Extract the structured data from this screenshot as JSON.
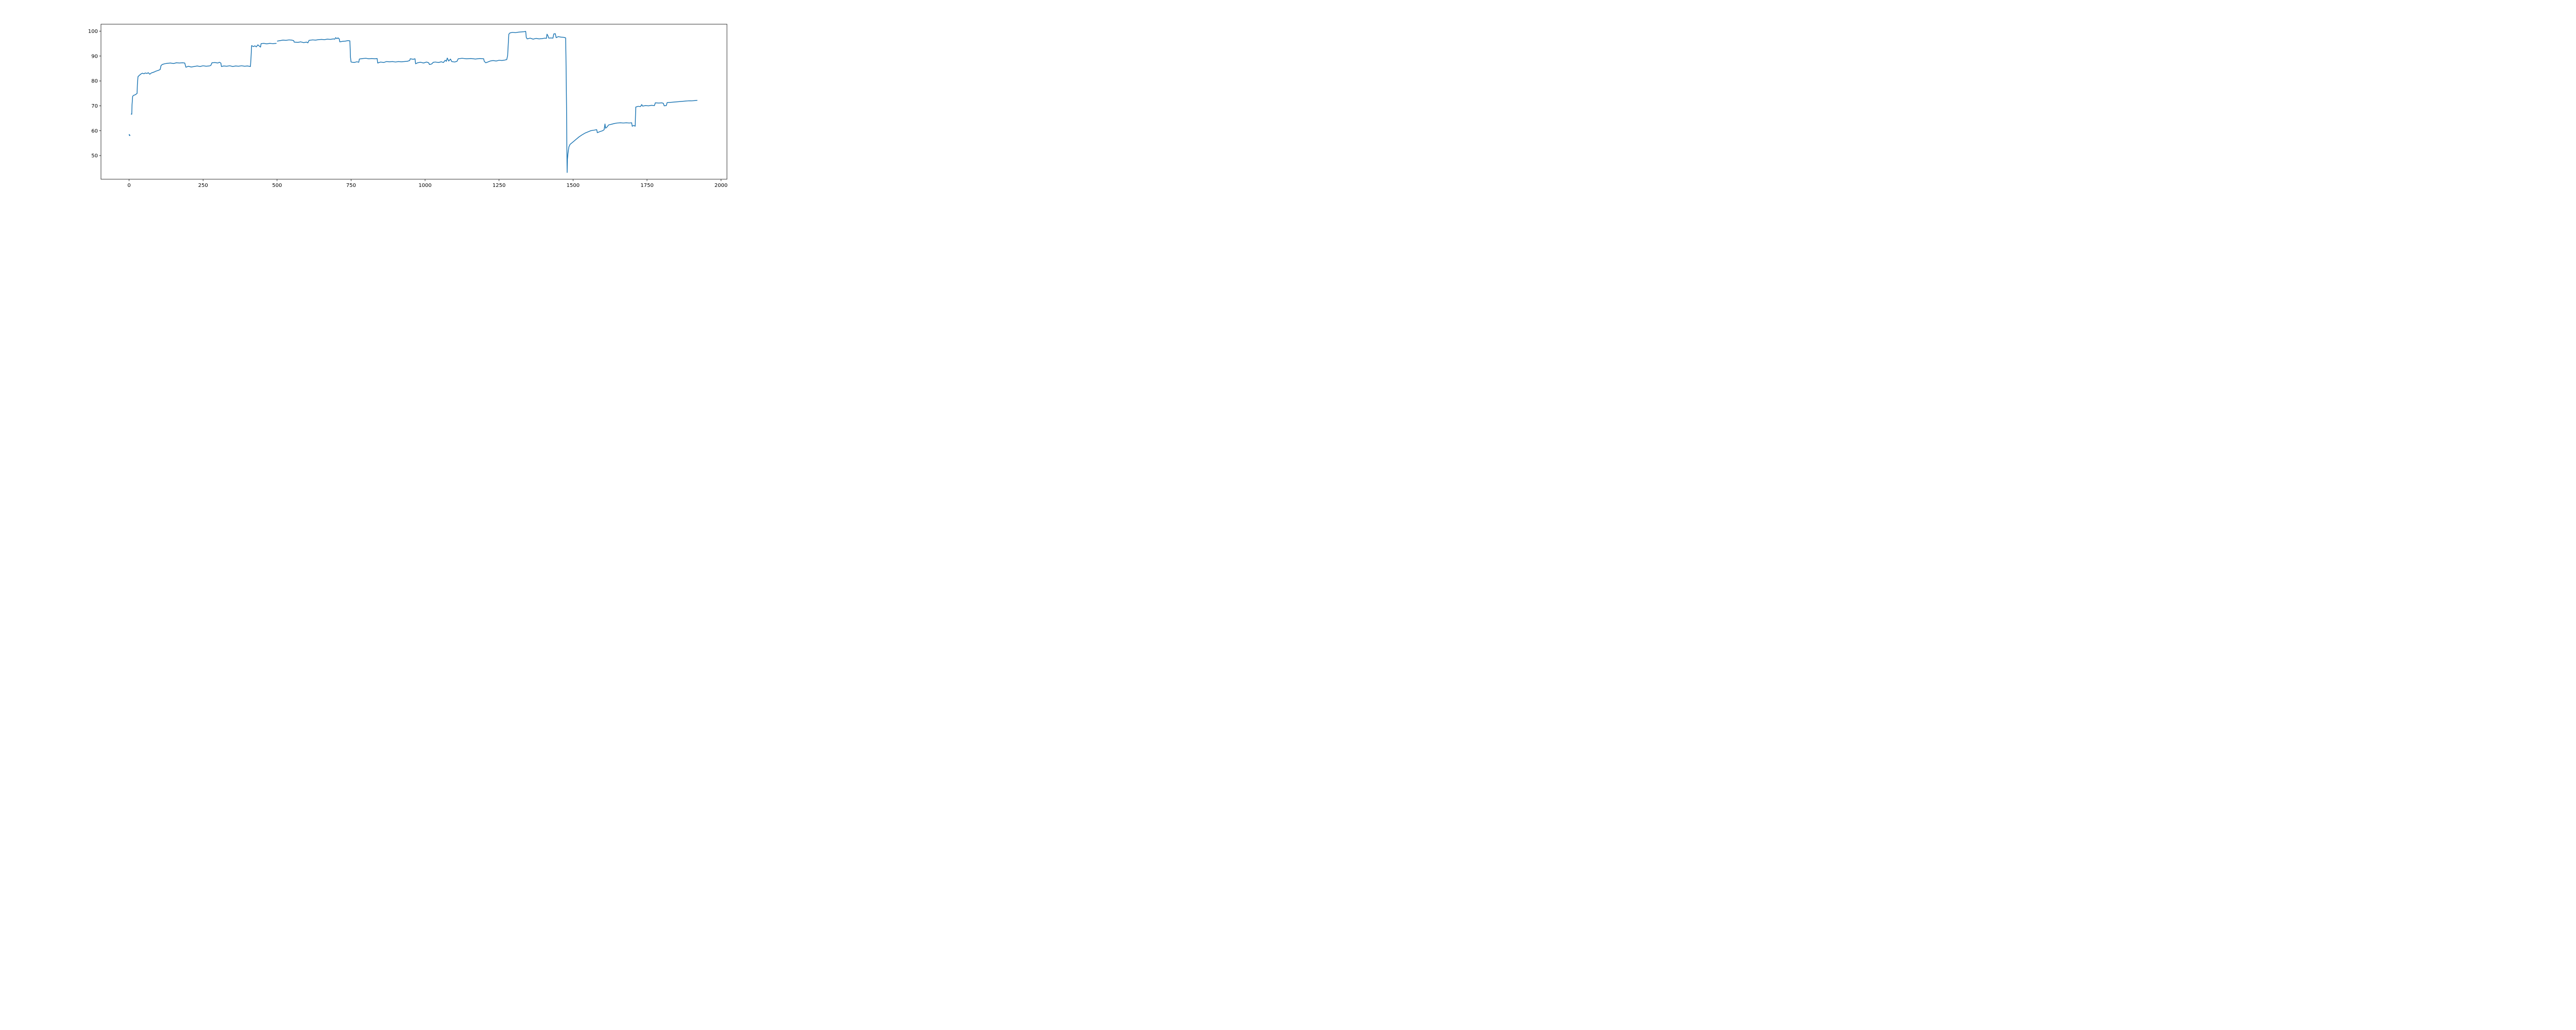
{
  "chart_data": {
    "type": "line",
    "title": "",
    "xlabel": "",
    "ylabel": "",
    "xlim": [
      -95,
      2020
    ],
    "ylim": [
      40.5,
      102.8
    ],
    "xticks": [
      0,
      250,
      500,
      750,
      1000,
      1250,
      1500,
      1750,
      2000
    ],
    "yticks": [
      50,
      60,
      70,
      80,
      90,
      100
    ],
    "grid": false,
    "series": [
      {
        "color": "#1f77b4",
        "segments": [
          [
            [
              0,
              58.6
            ],
            [
              1,
              58.1
            ],
            [
              2,
              58.3
            ],
            [
              3,
              57.9
            ]
          ],
          [
            [
              7,
              66.5
            ],
            [
              8,
              66.8
            ],
            [
              9,
              66.6
            ],
            [
              10,
              70.5
            ],
            [
              12,
              73.8
            ],
            [
              15,
              74.2
            ],
            [
              20,
              74.4
            ],
            [
              25,
              74.8
            ],
            [
              27,
              75.0
            ],
            [
              28,
              78.5
            ],
            [
              30,
              81.7
            ],
            [
              35,
              82.3
            ],
            [
              40,
              82.8
            ],
            [
              45,
              83.1
            ],
            [
              50,
              82.9
            ],
            [
              55,
              83.2
            ],
            [
              60,
              83.0
            ],
            [
              65,
              83.3
            ],
            [
              70,
              82.7
            ],
            [
              75,
              83.2
            ],
            [
              80,
              83.4
            ],
            [
              85,
              83.6
            ],
            [
              90,
              83.9
            ],
            [
              95,
              84.1
            ],
            [
              100,
              84.3
            ],
            [
              105,
              84.6
            ],
            [
              108,
              86.2
            ],
            [
              112,
              86.6
            ],
            [
              120,
              86.9
            ],
            [
              130,
              87.1
            ],
            [
              140,
              87.2
            ],
            [
              150,
              87.0
            ],
            [
              160,
              87.3
            ],
            [
              170,
              87.2
            ],
            [
              180,
              87.3
            ],
            [
              188,
              87.2
            ],
            [
              192,
              85.5
            ],
            [
              200,
              85.9
            ],
            [
              210,
              85.6
            ],
            [
              220,
              85.8
            ],
            [
              230,
              86.0
            ],
            [
              240,
              85.8
            ],
            [
              250,
              86.1
            ],
            [
              260,
              85.9
            ],
            [
              270,
              86.0
            ],
            [
              276,
              86.2
            ],
            [
              280,
              87.3
            ],
            [
              290,
              87.4
            ],
            [
              300,
              87.2
            ],
            [
              305,
              87.5
            ],
            [
              310,
              87.2
            ],
            [
              312,
              85.8
            ],
            [
              320,
              86.0
            ],
            [
              330,
              85.9
            ],
            [
              340,
              86.1
            ],
            [
              350,
              85.8
            ],
            [
              360,
              86.0
            ],
            [
              370,
              85.9
            ],
            [
              380,
              86.1
            ],
            [
              390,
              85.9
            ],
            [
              400,
              86.0
            ],
            [
              410,
              85.8
            ],
            [
              412,
              89.5
            ],
            [
              414,
              94.2
            ],
            [
              420,
              93.8
            ],
            [
              425,
              94.1
            ],
            [
              430,
              93.7
            ],
            [
              435,
              94.5
            ],
            [
              440,
              94.0
            ],
            [
              444,
              93.6
            ],
            [
              446,
              95.0
            ],
            [
              455,
              95.1
            ],
            [
              465,
              94.9
            ],
            [
              475,
              95.1
            ],
            [
              485,
              95.0
            ],
            [
              498,
              95.1
            ]
          ],
          [
            [
              500,
              96.0
            ],
            [
              510,
              96.2
            ],
            [
              520,
              96.4
            ],
            [
              530,
              96.3
            ],
            [
              540,
              96.5
            ],
            [
              550,
              96.4
            ],
            [
              556,
              96.2
            ],
            [
              558,
              95.6
            ],
            [
              570,
              95.5
            ],
            [
              580,
              95.7
            ],
            [
              590,
              95.4
            ],
            [
              600,
              95.6
            ],
            [
              604,
              95.3
            ],
            [
              608,
              96.3
            ],
            [
              620,
              96.5
            ],
            [
              630,
              96.4
            ],
            [
              640,
              96.6
            ],
            [
              650,
              96.7
            ],
            [
              660,
              96.6
            ],
            [
              670,
              96.8
            ],
            [
              680,
              96.7
            ],
            [
              690,
              96.9
            ],
            [
              695,
              96.8
            ],
            [
              698,
              97.4
            ],
            [
              702,
              97.0
            ],
            [
              706,
              97.3
            ],
            [
              710,
              96.9
            ],
            [
              712,
              95.7
            ],
            [
              720,
              95.9
            ],
            [
              730,
              96.0
            ],
            [
              740,
              96.2
            ],
            [
              746,
              96.1
            ],
            [
              748,
              89.5
            ],
            [
              750,
              87.6
            ],
            [
              760,
              87.4
            ],
            [
              770,
              87.7
            ],
            [
              776,
              87.5
            ],
            [
              778,
              88.8
            ],
            [
              790,
              89.0
            ],
            [
              800,
              89.1
            ],
            [
              810,
              88.9
            ],
            [
              820,
              89.0
            ],
            [
              830,
              88.9
            ],
            [
              838,
              89.0
            ],
            [
              840,
              87.2
            ],
            [
              850,
              87.6
            ],
            [
              860,
              87.4
            ],
            [
              870,
              87.8
            ],
            [
              880,
              87.7
            ],
            [
              890,
              87.8
            ],
            [
              900,
              87.6
            ],
            [
              910,
              87.8
            ],
            [
              920,
              87.7
            ],
            [
              930,
              87.8
            ],
            [
              940,
              87.9
            ],
            [
              948,
              88.2
            ],
            [
              950,
              88.9
            ],
            [
              960,
              88.7
            ],
            [
              966,
              88.9
            ],
            [
              968,
              86.9
            ],
            [
              975,
              87.3
            ],
            [
              985,
              87.5
            ],
            [
              995,
              87.2
            ],
            [
              1005,
              87.6
            ],
            [
              1012,
              87.3
            ],
            [
              1015,
              86.6
            ],
            [
              1022,
              86.8
            ],
            [
              1028,
              87.5
            ],
            [
              1035,
              87.6
            ],
            [
              1045,
              87.4
            ],
            [
              1055,
              87.7
            ],
            [
              1062,
              87.4
            ],
            [
              1068,
              88.3
            ],
            [
              1072,
              87.9
            ],
            [
              1075,
              89.2
            ],
            [
              1080,
              88.0
            ],
            [
              1086,
              88.8
            ],
            [
              1090,
              87.8
            ],
            [
              1100,
              87.6
            ],
            [
              1108,
              87.9
            ],
            [
              1112,
              88.9
            ],
            [
              1125,
              89.1
            ],
            [
              1140,
              88.9
            ],
            [
              1155,
              89.0
            ],
            [
              1170,
              88.8
            ],
            [
              1185,
              89.0
            ],
            [
              1198,
              88.9
            ],
            [
              1200,
              87.9
            ],
            [
              1205,
              87.3
            ],
            [
              1212,
              87.6
            ],
            [
              1220,
              88.0
            ],
            [
              1230,
              88.2
            ],
            [
              1240,
              88.0
            ],
            [
              1250,
              88.3
            ],
            [
              1260,
              88.2
            ],
            [
              1270,
              88.4
            ],
            [
              1276,
              88.6
            ],
            [
              1279,
              90.2
            ],
            [
              1281,
              94.5
            ],
            [
              1283,
              98.8
            ],
            [
              1287,
              99.3
            ],
            [
              1295,
              99.5
            ],
            [
              1305,
              99.4
            ],
            [
              1315,
              99.6
            ],
            [
              1325,
              99.7
            ],
            [
              1335,
              99.8
            ],
            [
              1340,
              99.9
            ],
            [
              1342,
              97.5
            ],
            [
              1345,
              96.9
            ],
            [
              1355,
              97.2
            ],
            [
              1365,
              96.8
            ],
            [
              1375,
              97.1
            ],
            [
              1385,
              96.9
            ],
            [
              1395,
              97.0
            ],
            [
              1405,
              97.2
            ],
            [
              1410,
              97.1
            ],
            [
              1412,
              98.8
            ],
            [
              1415,
              98.2
            ],
            [
              1418,
              97.2
            ],
            [
              1425,
              97.3
            ],
            [
              1432,
              97.2
            ],
            [
              1435,
              98.9
            ],
            [
              1440,
              99.0
            ],
            [
              1443,
              97.4
            ],
            [
              1450,
              97.8
            ],
            [
              1460,
              97.6
            ],
            [
              1470,
              97.5
            ],
            [
              1475,
              97.3
            ],
            [
              1476,
              90.0
            ],
            [
              1478,
              70.0
            ],
            [
              1479,
              55.0
            ],
            [
              1480,
              43.2
            ],
            [
              1481,
              48.5
            ],
            [
              1483,
              51.0
            ],
            [
              1486,
              53.5
            ],
            [
              1490,
              54.5
            ],
            [
              1500,
              55.5
            ],
            [
              1510,
              56.5
            ],
            [
              1520,
              57.5
            ],
            [
              1530,
              58.3
            ],
            [
              1540,
              59.0
            ],
            [
              1550,
              59.5
            ],
            [
              1560,
              60.0
            ],
            [
              1570,
              60.2
            ],
            [
              1580,
              60.4
            ],
            [
              1582,
              59.2
            ],
            [
              1590,
              59.6
            ],
            [
              1600,
              60.0
            ],
            [
              1605,
              60.4
            ],
            [
              1608,
              62.7
            ],
            [
              1610,
              61.0
            ],
            [
              1615,
              61.5
            ],
            [
              1620,
              62.3
            ],
            [
              1630,
              62.6
            ],
            [
              1640,
              62.9
            ],
            [
              1650,
              63.1
            ],
            [
              1660,
              63.2
            ],
            [
              1670,
              63.1
            ],
            [
              1680,
              63.2
            ],
            [
              1690,
              63.1
            ],
            [
              1698,
              63.2
            ],
            [
              1700,
              61.8
            ],
            [
              1705,
              62.1
            ],
            [
              1710,
              61.8
            ],
            [
              1712,
              69.5
            ],
            [
              1720,
              69.8
            ],
            [
              1728,
              69.7
            ],
            [
              1732,
              70.5
            ],
            [
              1735,
              69.9
            ],
            [
              1745,
              70.1
            ],
            [
              1755,
              70.0
            ],
            [
              1765,
              70.2
            ],
            [
              1775,
              70.1
            ],
            [
              1778,
              71.2
            ],
            [
              1790,
              71.1
            ],
            [
              1800,
              71.2
            ],
            [
              1805,
              71.0
            ],
            [
              1808,
              70.0
            ],
            [
              1815,
              70.1
            ],
            [
              1818,
              71.3
            ],
            [
              1830,
              71.4
            ],
            [
              1840,
              71.5
            ],
            [
              1850,
              71.6
            ],
            [
              1860,
              71.7
            ],
            [
              1870,
              71.8
            ],
            [
              1880,
              71.9
            ],
            [
              1890,
              72.0
            ],
            [
              1900,
              72.0
            ],
            [
              1910,
              72.1
            ],
            [
              1920,
              72.2
            ]
          ]
        ]
      }
    ]
  }
}
